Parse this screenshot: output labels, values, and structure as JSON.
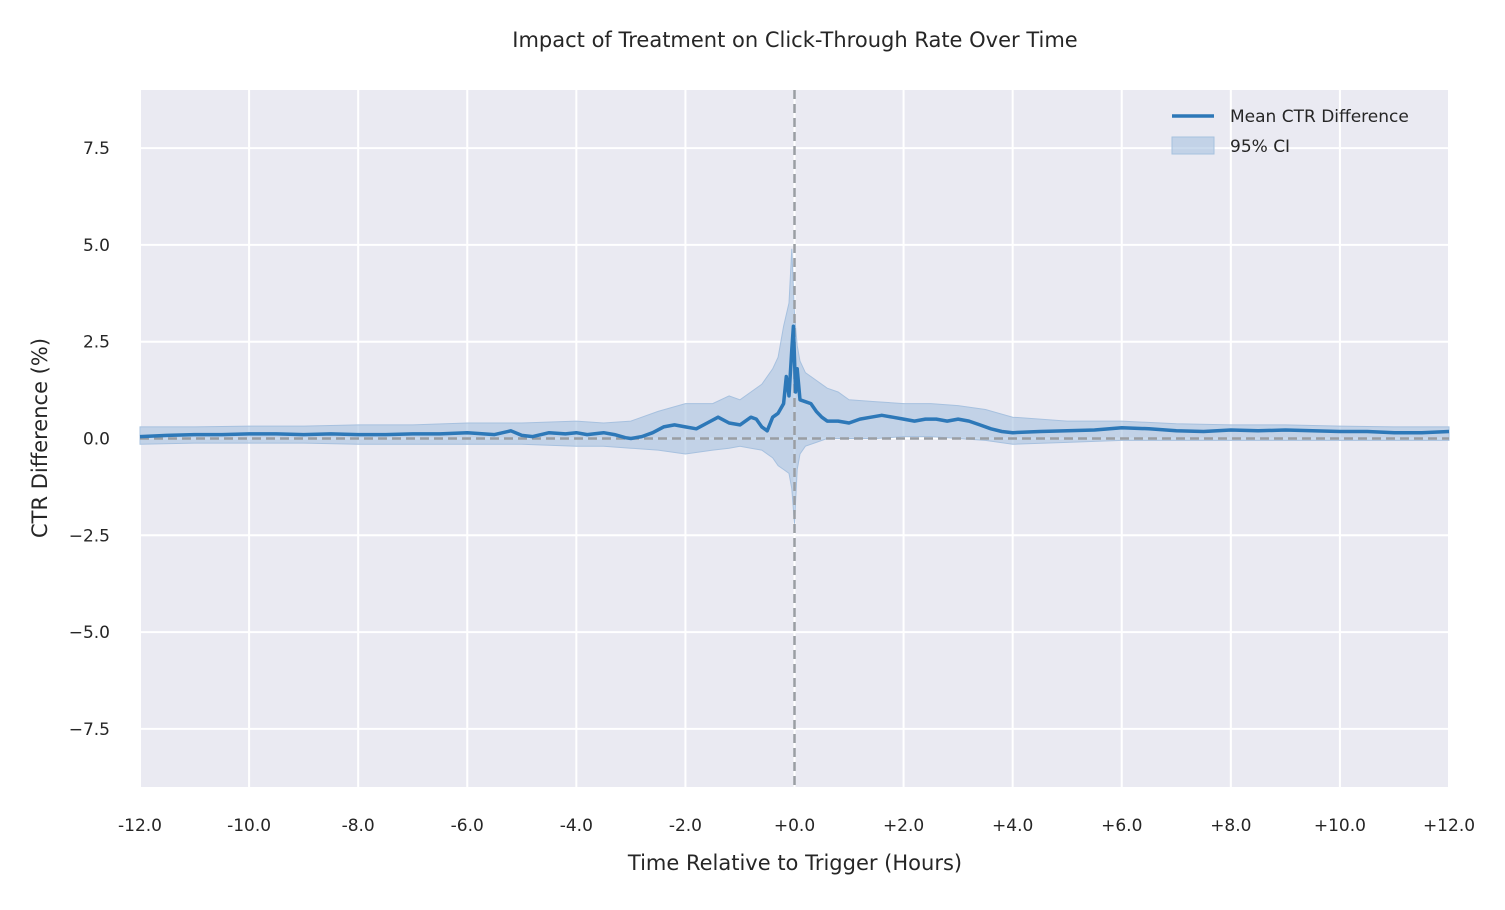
{
  "chart_data": {
    "type": "line",
    "title": "Impact of Treatment on Click-Through Rate Over Time",
    "xlabel": "Time Relative to Trigger (Hours)",
    "ylabel": "CTR Difference (%)",
    "xlim": [
      -12,
      12
    ],
    "ylim": [
      -9,
      9
    ],
    "x_ticks": [
      -12,
      -10,
      -8,
      -6,
      -4,
      -2,
      0,
      2,
      4,
      6,
      8,
      10,
      12
    ],
    "x_tick_labels": [
      "-12.0",
      "-10.0",
      "-8.0",
      "-6.0",
      "-4.0",
      "-2.0",
      "+0.0",
      "+2.0",
      "+4.0",
      "+6.0",
      "+8.0",
      "+10.0",
      "+12.0"
    ],
    "y_ticks": [
      -7.5,
      -5.0,
      -2.5,
      0.0,
      2.5,
      5.0,
      7.5
    ],
    "y_tick_labels": [
      "−7.5",
      "−5.0",
      "−2.5",
      "0.0",
      "2.5",
      "5.0",
      "7.5"
    ],
    "grid": true,
    "legend_position": "top-right",
    "reference_lines": {
      "x": 0,
      "y": 0
    },
    "colors": {
      "line": "#2d78b8",
      "band": "#a7c1df",
      "background": "#eaeaf2",
      "grid": "#ffffff",
      "reference": "#9a9ea3"
    },
    "series": [
      {
        "name": "Mean CTR Difference",
        "kind": "line",
        "x": [
          -12,
          -11.5,
          -11,
          -10.5,
          -10,
          -9.5,
          -9,
          -8.5,
          -8,
          -7.5,
          -7,
          -6.5,
          -6,
          -5.5,
          -5.2,
          -5,
          -4.8,
          -4.5,
          -4.2,
          -4,
          -3.8,
          -3.5,
          -3.3,
          -3.1,
          -3,
          -2.8,
          -2.6,
          -2.4,
          -2.2,
          -2,
          -1.8,
          -1.6,
          -1.4,
          -1.2,
          -1.0,
          -0.8,
          -0.7,
          -0.6,
          -0.5,
          -0.4,
          -0.3,
          -0.2,
          -0.15,
          -0.1,
          -0.05,
          -0.02,
          0.02,
          0.05,
          0.1,
          0.2,
          0.3,
          0.4,
          0.5,
          0.6,
          0.8,
          1.0,
          1.2,
          1.4,
          1.6,
          1.8,
          2.0,
          2.2,
          2.4,
          2.6,
          2.8,
          3.0,
          3.2,
          3.4,
          3.6,
          3.8,
          4.0,
          4.5,
          5.0,
          5.5,
          6.0,
          6.5,
          7.0,
          7.5,
          8.0,
          8.5,
          9.0,
          9.5,
          10.0,
          10.5,
          11.0,
          11.5,
          12.0
        ],
        "y": [
          0.05,
          0.08,
          0.1,
          0.1,
          0.12,
          0.12,
          0.1,
          0.12,
          0.1,
          0.1,
          0.12,
          0.12,
          0.15,
          0.1,
          0.2,
          0.08,
          0.05,
          0.15,
          0.12,
          0.15,
          0.1,
          0.15,
          0.1,
          0.02,
          0.0,
          0.05,
          0.15,
          0.3,
          0.35,
          0.3,
          0.25,
          0.4,
          0.55,
          0.4,
          0.35,
          0.55,
          0.5,
          0.3,
          0.2,
          0.55,
          0.65,
          0.9,
          1.6,
          1.1,
          2.3,
          2.9,
          1.2,
          1.8,
          1.0,
          0.95,
          0.9,
          0.7,
          0.55,
          0.45,
          0.45,
          0.4,
          0.5,
          0.55,
          0.6,
          0.55,
          0.5,
          0.45,
          0.5,
          0.5,
          0.45,
          0.5,
          0.45,
          0.35,
          0.25,
          0.18,
          0.15,
          0.18,
          0.2,
          0.22,
          0.28,
          0.25,
          0.2,
          0.18,
          0.22,
          0.2,
          0.22,
          0.2,
          0.18,
          0.18,
          0.15,
          0.15,
          0.18
        ]
      },
      {
        "name": "95% CI",
        "kind": "band",
        "x": [
          -12,
          -11,
          -10,
          -9,
          -8,
          -7,
          -6,
          -5,
          -4,
          -3.5,
          -3,
          -2.5,
          -2,
          -1.5,
          -1.2,
          -1.0,
          -0.8,
          -0.6,
          -0.4,
          -0.3,
          -0.2,
          -0.1,
          -0.05,
          0.0,
          0.05,
          0.1,
          0.2,
          0.4,
          0.6,
          0.8,
          1.0,
          1.5,
          2.0,
          2.5,
          3.0,
          3.5,
          4.0,
          5.0,
          6.0,
          7.0,
          8.0,
          9.0,
          10.0,
          11.0,
          12.0
        ],
        "upper": [
          0.3,
          0.3,
          0.32,
          0.32,
          0.35,
          0.35,
          0.4,
          0.4,
          0.45,
          0.4,
          0.45,
          0.7,
          0.9,
          0.9,
          1.1,
          1.0,
          1.2,
          1.4,
          1.8,
          2.1,
          2.9,
          3.5,
          4.9,
          3.2,
          2.4,
          2.0,
          1.7,
          1.5,
          1.3,
          1.2,
          1.0,
          0.95,
          0.9,
          0.9,
          0.85,
          0.75,
          0.55,
          0.45,
          0.45,
          0.38,
          0.35,
          0.35,
          0.32,
          0.3,
          0.3
        ],
        "lower": [
          -0.15,
          -0.12,
          -0.12,
          -0.12,
          -0.15,
          -0.15,
          -0.15,
          -0.15,
          -0.2,
          -0.2,
          -0.25,
          -0.3,
          -0.4,
          -0.3,
          -0.25,
          -0.2,
          -0.25,
          -0.3,
          -0.5,
          -0.7,
          -0.8,
          -0.9,
          -1.3,
          -2.2,
          -0.8,
          -0.4,
          -0.2,
          -0.1,
          0.0,
          0.0,
          0.0,
          0.0,
          0.05,
          0.05,
          0.0,
          -0.05,
          -0.15,
          -0.1,
          -0.05,
          -0.05,
          -0.05,
          -0.05,
          -0.05,
          -0.05,
          -0.05
        ]
      }
    ]
  }
}
